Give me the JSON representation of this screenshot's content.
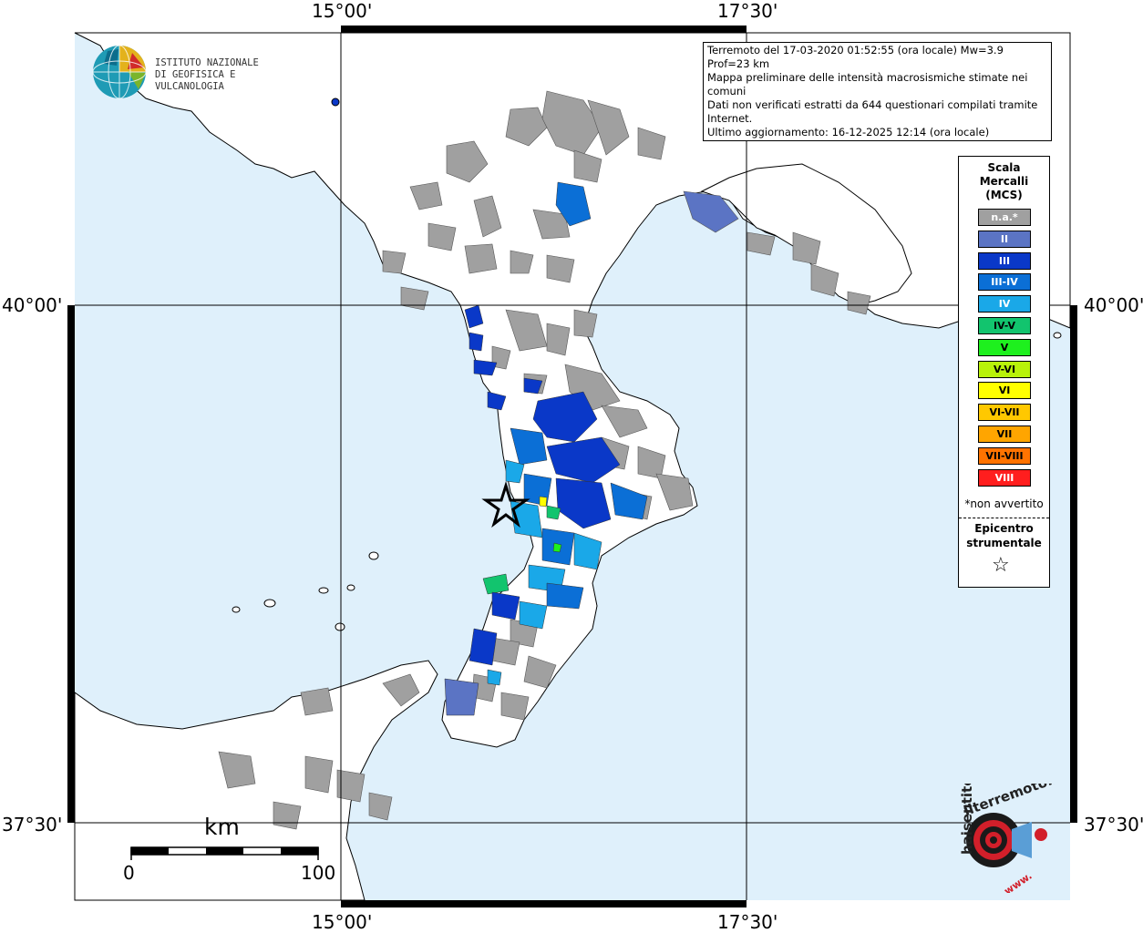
{
  "coordinates": {
    "lon_top": [
      "15°00'",
      "17°30'"
    ],
    "lon_bottom": [
      "15°00'",
      "17°30'"
    ],
    "lat_left": [
      "40°00'",
      "37°30'"
    ],
    "lat_right": [
      "40°00'",
      "37°30'"
    ]
  },
  "institute": {
    "line1": "ISTITUTO NAZIONALE",
    "line2": "DI GEOFISICA E VULCANOLOGIA"
  },
  "info_box": {
    "line1": "Terremoto del 17-03-2020 01:52:55 (ora locale) Mw=3.9 Prof=23 km",
    "line2": "Mappa preliminare delle intensità macrosismiche stimate nei comuni",
    "line3": "Dati non verificati estratti da 644 questionari compilati tramite Internet.",
    "line4": "Ultimo aggiornamento: 16-12-2025 12:14 (ora locale)"
  },
  "legend": {
    "title1": "Scala",
    "title2": "Mercalli",
    "title3": "(MCS)",
    "items": [
      {
        "label": "n.a.*",
        "color": "#a0a0a0",
        "text_color": "#ffffff"
      },
      {
        "label": "II",
        "color": "#5b74c4",
        "text_color": "#ffffff"
      },
      {
        "label": "III",
        "color": "#0a38c8",
        "text_color": "#ffffff"
      },
      {
        "label": "III-IV",
        "color": "#0b6fd6",
        "text_color": "#ffffff"
      },
      {
        "label": "IV",
        "color": "#1aa8e8",
        "text_color": "#ffffff"
      },
      {
        "label": "IV-V",
        "color": "#12c46e",
        "text_color": "#000000"
      },
      {
        "label": "V",
        "color": "#1ef01e",
        "text_color": "#000000"
      },
      {
        "label": "V-VI",
        "color": "#b8f20a",
        "text_color": "#000000"
      },
      {
        "label": "VI",
        "color": "#ffff00",
        "text_color": "#000000"
      },
      {
        "label": "VI-VII",
        "color": "#ffc800",
        "text_color": "#000000"
      },
      {
        "label": "VII",
        "color": "#ffa500",
        "text_color": "#000000"
      },
      {
        "label": "VII-VIII",
        "color": "#ff7300",
        "text_color": "#000000"
      },
      {
        "label": "VIII",
        "color": "#ff1e1e",
        "text_color": "#ffffff"
      }
    ],
    "note": "*non avvertito",
    "epicentre1": "Epicentro",
    "epicentre2": "strumentale",
    "star": "☆"
  },
  "scale_bar": {
    "unit": "km",
    "start": "0",
    "end": "100"
  },
  "brand": {
    "text1": "haisentito",
    "text2": "ilterremoto.it",
    "text3": "www."
  },
  "colors": {
    "sea": "#dff0fb",
    "land": "#ffffff",
    "grey": "#a0a0a0",
    "blue_dark": "#0a38c8",
    "blue_mid": "#0b6fd6",
    "blue_light": "#1aa8e8",
    "blue_pale": "#5b74c4"
  }
}
